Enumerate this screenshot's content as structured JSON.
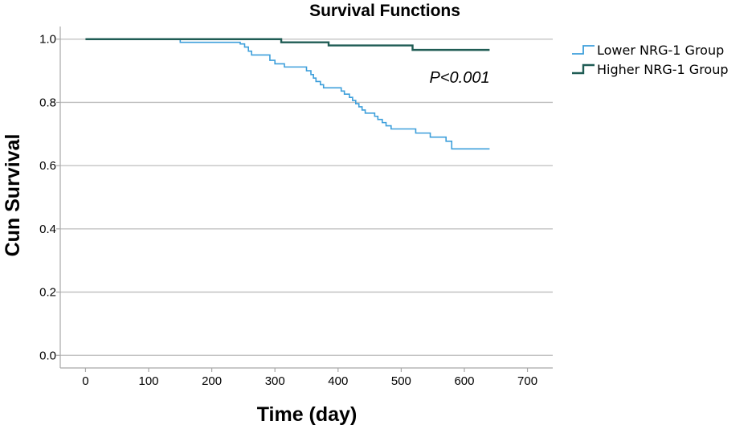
{
  "chart_data": {
    "type": "line",
    "title": "Survival Functions",
    "xlabel": "Time (day)",
    "ylabel": "Cun Survival",
    "xlim": [
      -40,
      740
    ],
    "ylim": [
      -0.04,
      1.04
    ],
    "xticks": [
      0,
      100,
      200,
      300,
      400,
      500,
      600,
      700
    ],
    "yticks": [
      0.0,
      0.2,
      0.4,
      0.6,
      0.8,
      1.0
    ],
    "xtick_labels": [
      "0",
      "100",
      "200",
      "300",
      "400",
      "500",
      "600",
      "700"
    ],
    "ytick_labels": [
      "0.0",
      "0.2",
      "0.4",
      "0.6",
      "0.8",
      "1.0"
    ],
    "grid": "horizontal",
    "legend_position": "right",
    "annotation": "P<0.001",
    "annotation_at": [
      560,
      0.88
    ],
    "series": [
      {
        "name": "Lower NRG-1 Group",
        "color": "#3d9fdb",
        "points": [
          [
            0,
            1.0
          ],
          [
            150,
            1.0
          ],
          [
            150,
            0.99
          ],
          [
            245,
            0.99
          ],
          [
            245,
            0.985
          ],
          [
            252,
            0.985
          ],
          [
            252,
            0.975
          ],
          [
            258,
            0.975
          ],
          [
            258,
            0.962
          ],
          [
            263,
            0.962
          ],
          [
            263,
            0.95
          ],
          [
            292,
            0.95
          ],
          [
            292,
            0.933
          ],
          [
            300,
            0.933
          ],
          [
            300,
            0.922
          ],
          [
            315,
            0.922
          ],
          [
            315,
            0.912
          ],
          [
            350,
            0.912
          ],
          [
            350,
            0.9
          ],
          [
            357,
            0.9
          ],
          [
            357,
            0.888
          ],
          [
            361,
            0.888
          ],
          [
            361,
            0.877
          ],
          [
            365,
            0.877
          ],
          [
            365,
            0.866
          ],
          [
            372,
            0.866
          ],
          [
            372,
            0.856
          ],
          [
            377,
            0.856
          ],
          [
            377,
            0.846
          ],
          [
            405,
            0.846
          ],
          [
            405,
            0.836
          ],
          [
            410,
            0.836
          ],
          [
            410,
            0.826
          ],
          [
            418,
            0.826
          ],
          [
            418,
            0.816
          ],
          [
            423,
            0.816
          ],
          [
            423,
            0.806
          ],
          [
            428,
            0.806
          ],
          [
            428,
            0.796
          ],
          [
            433,
            0.796
          ],
          [
            433,
            0.786
          ],
          [
            438,
            0.786
          ],
          [
            438,
            0.776
          ],
          [
            443,
            0.776
          ],
          [
            443,
            0.766
          ],
          [
            458,
            0.766
          ],
          [
            458,
            0.756
          ],
          [
            463,
            0.756
          ],
          [
            463,
            0.746
          ],
          [
            470,
            0.746
          ],
          [
            470,
            0.736
          ],
          [
            476,
            0.736
          ],
          [
            476,
            0.726
          ],
          [
            484,
            0.726
          ],
          [
            484,
            0.716
          ],
          [
            523,
            0.716
          ],
          [
            523,
            0.703
          ],
          [
            546,
            0.703
          ],
          [
            546,
            0.69
          ],
          [
            571,
            0.69
          ],
          [
            571,
            0.677
          ],
          [
            580,
            0.677
          ],
          [
            580,
            0.653
          ],
          [
            640,
            0.653
          ]
        ]
      },
      {
        "name": "Higher NRG-1 Group",
        "color": "#1f5c54",
        "points": [
          [
            0,
            1.0
          ],
          [
            310,
            1.0
          ],
          [
            310,
            0.99
          ],
          [
            385,
            0.99
          ],
          [
            385,
            0.98
          ],
          [
            518,
            0.98
          ],
          [
            518,
            0.966
          ],
          [
            640,
            0.966
          ]
        ]
      }
    ]
  }
}
